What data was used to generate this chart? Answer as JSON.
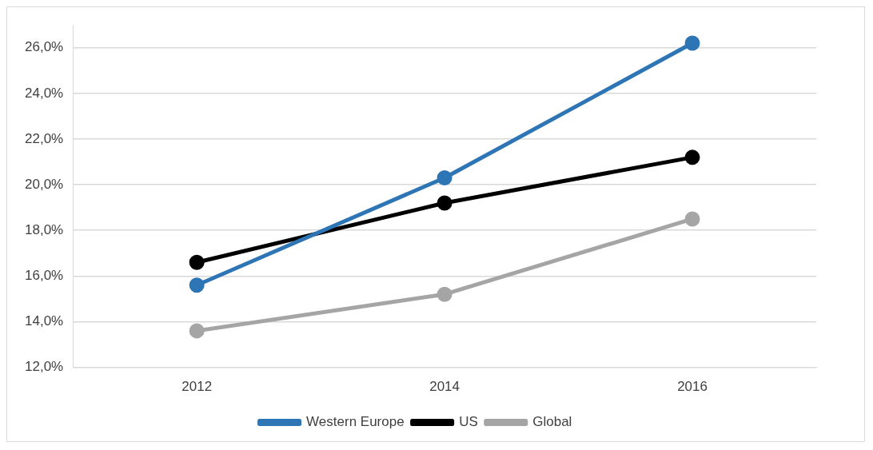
{
  "chart_data": {
    "type": "line",
    "categories": [
      "2012",
      "2014",
      "2016"
    ],
    "series": [
      {
        "name": "Western Europe",
        "color": "#2e75b6",
        "values": [
          15.6,
          20.3,
          26.2
        ]
      },
      {
        "name": "US",
        "color": "#000000",
        "values": [
          16.6,
          19.2,
          21.2
        ]
      },
      {
        "name": "Global",
        "color": "#a5a5a5",
        "values": [
          13.6,
          15.2,
          18.5
        ]
      }
    ],
    "ylim": [
      12,
      27
    ],
    "yticks": [
      {
        "value": 12,
        "label": "12,0%"
      },
      {
        "value": 14,
        "label": "14,0%"
      },
      {
        "value": 16,
        "label": "16,0%"
      },
      {
        "value": 18,
        "label": "18,0%"
      },
      {
        "value": 20,
        "label": "20,0%"
      },
      {
        "value": 22,
        "label": "22,0%"
      },
      {
        "value": 24,
        "label": "24,0%"
      },
      {
        "value": 26,
        "label": "26,0%"
      }
    ],
    "grid": "y",
    "legend": "bottom",
    "marker": "circle",
    "line_style": "solid"
  }
}
